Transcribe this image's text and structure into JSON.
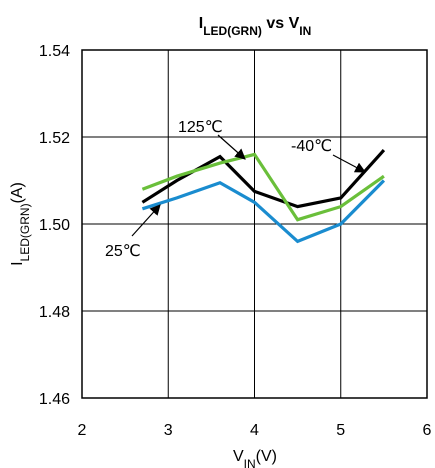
{
  "chart_data": {
    "type": "line",
    "title": {
      "main": "I",
      "sub": "LED(GRN)",
      "mid": " vs V",
      "sub2": "IN"
    },
    "xlabel": {
      "main": "V",
      "sub": "IN",
      "rest": "(V)"
    },
    "ylabel": {
      "main": "I",
      "sub": "LED(GRN)",
      "rest": "(A)"
    },
    "xlim": [
      2,
      6
    ],
    "ylim": [
      1.46,
      1.54
    ],
    "xticks": [
      "2",
      "3",
      "4",
      "5",
      "6"
    ],
    "yticks": [
      "1.46",
      "1.48",
      "1.50",
      "1.52",
      "1.54"
    ],
    "grid": true,
    "series": [
      {
        "name": "125℃",
        "color": "#000000",
        "x": [
          2.7,
          3.1,
          3.6,
          4.0,
          4.5,
          5.0,
          5.5
        ],
        "y": [
          1.505,
          1.51,
          1.5155,
          1.5075,
          1.504,
          1.506,
          1.517
        ]
      },
      {
        "name": "-40℃",
        "color": "#6abf3a",
        "x": [
          2.7,
          3.1,
          3.6,
          4.0,
          4.5,
          5.0,
          5.5
        ],
        "y": [
          1.508,
          1.511,
          1.514,
          1.516,
          1.501,
          1.504,
          1.511
        ]
      },
      {
        "name": "25℃",
        "color": "#1a8ccf",
        "x": [
          2.7,
          3.1,
          3.6,
          4.0,
          4.5,
          5.0,
          5.5
        ],
        "y": [
          1.5035,
          1.506,
          1.5095,
          1.505,
          1.496,
          1.5,
          1.51
        ]
      }
    ],
    "annotations": [
      {
        "text": "125℃",
        "series": "125℃",
        "target": [
          3.6,
          1.5155
        ],
        "anchor": [
          2.95,
          1.5225
        ]
      },
      {
        "text": "-40℃",
        "series": "-40℃",
        "target": [
          5.3,
          1.5095
        ],
        "anchor": [
          4.45,
          1.5185
        ]
      },
      {
        "text": "25℃",
        "series": "25℃",
        "target": [
          2.95,
          1.5065
        ],
        "anchor": [
          2.4,
          1.4965
        ]
      }
    ]
  }
}
